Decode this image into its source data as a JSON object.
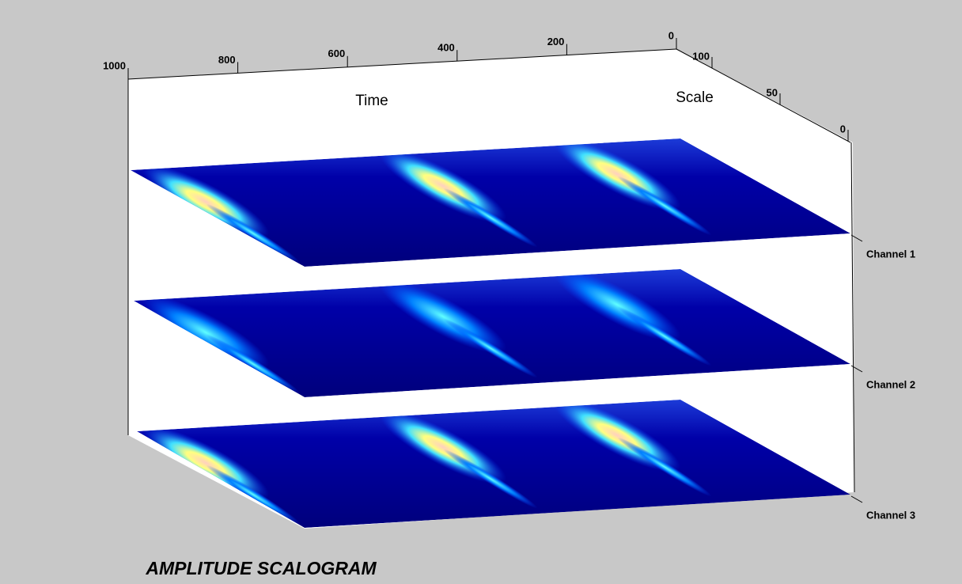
{
  "chart_data": {
    "type": "scalogram3d",
    "title": "AMPLITUDE SCALOGRAM",
    "x_label": "Time",
    "y_label": "Scale",
    "xlim": [
      1000,
      0
    ],
    "xticks": [
      1000,
      800,
      600,
      400,
      200,
      0
    ],
    "ylim": [
      100,
      0
    ],
    "yticks": [
      100,
      50,
      0
    ],
    "channels": [
      "Channel 1",
      "Channel 2",
      "Channel 3"
    ]
  }
}
